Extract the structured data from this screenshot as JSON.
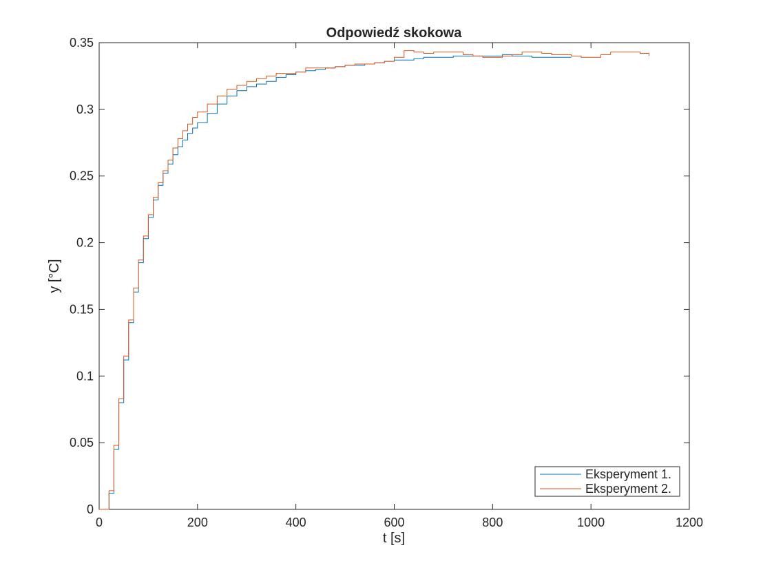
{
  "chart_data": {
    "type": "line",
    "title": "Odpowiedź skokowa",
    "xlabel": "t [s]",
    "ylabel": "y [°C]",
    "xlim": [
      0,
      1200
    ],
    "ylim": [
      0,
      0.35
    ],
    "xticks": [
      0,
      200,
      400,
      600,
      800,
      1000,
      1200
    ],
    "xtick_labels": [
      "0",
      "200",
      "400",
      "600",
      "800",
      "1000",
      "1200"
    ],
    "yticks": [
      0,
      0.05,
      0.1,
      0.15,
      0.2,
      0.25,
      0.3,
      0.35
    ],
    "ytick_labels": [
      "0",
      "0.05",
      "0.1",
      "0.15",
      "0.2",
      "0.25",
      "0.3",
      "0.35"
    ],
    "grid": false,
    "legend_position": "bottom-right",
    "series": [
      {
        "name": "Eksperyment 1.",
        "color": "#0072BD",
        "x": [
          0,
          10,
          20,
          30,
          40,
          50,
          60,
          70,
          80,
          90,
          100,
          110,
          120,
          130,
          140,
          150,
          160,
          170,
          180,
          190,
          200,
          220,
          240,
          260,
          280,
          300,
          320,
          340,
          360,
          380,
          400,
          420,
          440,
          460,
          480,
          500,
          520,
          540,
          560,
          580,
          600,
          620,
          640,
          660,
          680,
          700,
          720,
          740,
          760,
          780,
          800,
          820,
          840,
          860,
          880,
          900,
          920,
          940,
          960
        ],
        "y": [
          0,
          0,
          0.012,
          0.045,
          0.08,
          0.112,
          0.14,
          0.163,
          0.185,
          0.203,
          0.219,
          0.232,
          0.243,
          0.252,
          0.259,
          0.266,
          0.272,
          0.277,
          0.282,
          0.286,
          0.29,
          0.297,
          0.304,
          0.31,
          0.314,
          0.317,
          0.319,
          0.321,
          0.324,
          0.326,
          0.328,
          0.329,
          0.33,
          0.331,
          0.332,
          0.333,
          0.333,
          0.334,
          0.335,
          0.336,
          0.337,
          0.337,
          0.338,
          0.339,
          0.339,
          0.339,
          0.34,
          0.34,
          0.34,
          0.34,
          0.34,
          0.341,
          0.34,
          0.34,
          0.339,
          0.339,
          0.339,
          0.339,
          0.339
        ]
      },
      {
        "name": "Eksperyment 2.",
        "color": "#D95319",
        "x": [
          0,
          10,
          20,
          30,
          40,
          50,
          60,
          70,
          80,
          90,
          100,
          110,
          120,
          130,
          140,
          150,
          160,
          170,
          180,
          190,
          200,
          220,
          240,
          260,
          280,
          300,
          320,
          340,
          360,
          380,
          400,
          420,
          440,
          460,
          480,
          500,
          520,
          540,
          560,
          580,
          600,
          620,
          640,
          660,
          680,
          700,
          720,
          740,
          760,
          780,
          800,
          820,
          840,
          860,
          880,
          900,
          920,
          940,
          960,
          980,
          1000,
          1020,
          1040,
          1060,
          1080,
          1100,
          1118
        ],
        "y": [
          0,
          0,
          0.014,
          0.048,
          0.083,
          0.115,
          0.142,
          0.166,
          0.187,
          0.205,
          0.221,
          0.234,
          0.245,
          0.254,
          0.262,
          0.271,
          0.278,
          0.284,
          0.289,
          0.294,
          0.298,
          0.304,
          0.31,
          0.315,
          0.318,
          0.321,
          0.323,
          0.325,
          0.327,
          0.327,
          0.328,
          0.331,
          0.331,
          0.331,
          0.332,
          0.333,
          0.334,
          0.334,
          0.335,
          0.336,
          0.339,
          0.344,
          0.343,
          0.342,
          0.343,
          0.343,
          0.343,
          0.341,
          0.34,
          0.339,
          0.339,
          0.34,
          0.341,
          0.343,
          0.343,
          0.342,
          0.341,
          0.341,
          0.34,
          0.339,
          0.339,
          0.341,
          0.343,
          0.343,
          0.343,
          0.342,
          0.34
        ]
      }
    ]
  }
}
